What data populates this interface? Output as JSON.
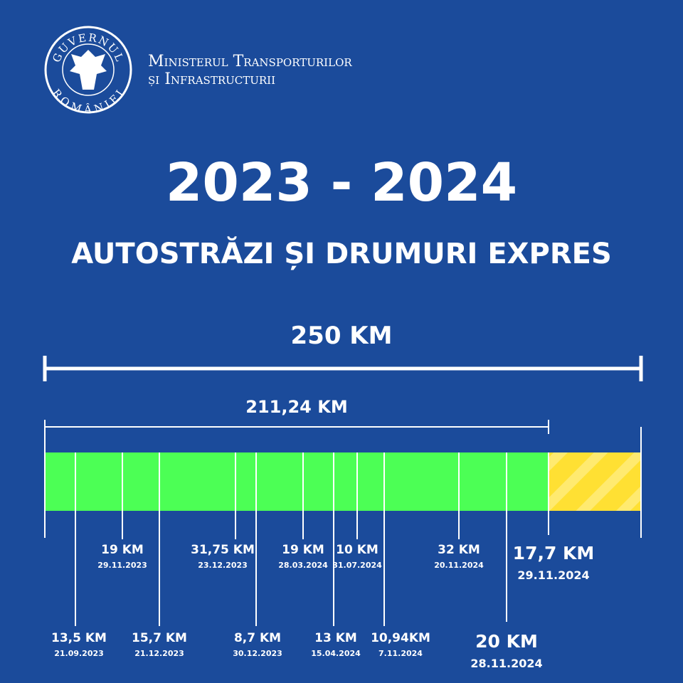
{
  "header": {
    "emblem_top": "GUVERNUL",
    "emblem_bottom": "ROMÂNIEI",
    "ministry_line1": "Ministerul Transporturilor",
    "ministry_line2": "și Infrastructurii"
  },
  "title": "2023 - 2024",
  "subtitle": "AUTOSTRĂZI ȘI DRUMURI EXPRES",
  "total": "250 KM",
  "completed": "211,24 KM",
  "segments": [
    {
      "length": "13,5 KM",
      "date": "21.09.2023"
    },
    {
      "length": "19 KM",
      "date": "29.11.2023"
    },
    {
      "length": "15,7 KM",
      "date": "21.12.2023"
    },
    {
      "length": "31,75 KM",
      "date": "23.12.2023"
    },
    {
      "length": "8,7 KM",
      "date": "30.12.2023"
    },
    {
      "length": "19 KM",
      "date": "28.03.2024"
    },
    {
      "length": "13 KM",
      "date": "15.04.2024"
    },
    {
      "length": "10 KM",
      "date": "31.07.2024"
    },
    {
      "length": "10,94KM",
      "date": "7.11.2024"
    },
    {
      "length": "32 KM",
      "date": "20.11.2024"
    },
    {
      "length": "20 KM",
      "date": "28.11.2024"
    },
    {
      "length": "17,7 KM",
      "date": "29.11.2024"
    }
  ]
}
